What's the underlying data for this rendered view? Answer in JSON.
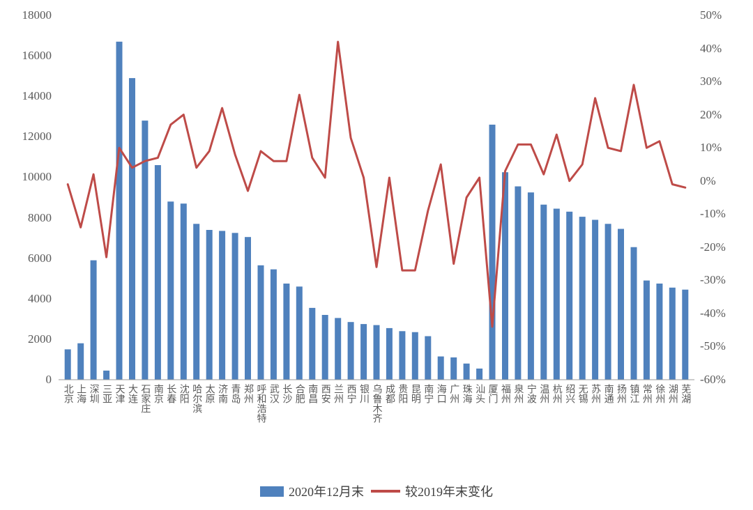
{
  "chart_data": {
    "type": "bar",
    "title": "",
    "categories": [
      "北京",
      "上海",
      "深圳",
      "三亚",
      "天津",
      "大连",
      "石家庄",
      "南京",
      "长春",
      "沈阳",
      "哈尔滨",
      "太原",
      "济南",
      "青岛",
      "郑州",
      "呼和浩特",
      "武汉",
      "长沙",
      "合肥",
      "南昌",
      "西安",
      "兰州",
      "西宁",
      "银川",
      "乌鲁木齐",
      "成都",
      "贵阳",
      "昆明",
      "南宁",
      "海口",
      "广州",
      "珠海",
      "汕头",
      "厦门",
      "福州",
      "泉州",
      "宁波",
      "温州",
      "杭州",
      "绍兴",
      "无锡",
      "苏州",
      "南通",
      "扬州",
      "镇江",
      "常州",
      "徐州",
      "湖州",
      "芜湖"
    ],
    "series": [
      {
        "name": "2020年12月末",
        "type": "bar",
        "axis": "left",
        "color": "#4F81BD",
        "values": [
          1500,
          1800,
          5900,
          450,
          16700,
          14900,
          12800,
          10600,
          8800,
          8700,
          7700,
          7400,
          7350,
          7250,
          7050,
          5650,
          5450,
          4750,
          4600,
          3550,
          3200,
          3050,
          2850,
          2750,
          2700,
          2550,
          2400,
          2350,
          2150,
          1150,
          1100,
          800,
          550,
          12600,
          10250,
          9550,
          9250,
          8650,
          8450,
          8300,
          8050,
          7900,
          7700,
          7450,
          6550,
          4900,
          4750,
          4550,
          4450
        ]
      },
      {
        "name": "较2019年末变化",
        "type": "line",
        "axis": "right",
        "color": "#BE4B48",
        "values_pct": [
          -1,
          -14,
          2,
          -23,
          10,
          4,
          6,
          7,
          17,
          20,
          4,
          9,
          22,
          8,
          -3,
          9,
          6,
          6,
          26,
          7,
          1,
          42,
          13,
          1,
          -26,
          1,
          -27,
          -27,
          -9,
          5,
          -25,
          -5,
          1,
          -44,
          3,
          11,
          11,
          2,
          14,
          0,
          5,
          25,
          10,
          9,
          29,
          10,
          12,
          -1,
          -2
        ]
      }
    ],
    "left_axis": {
      "min": 0,
      "max": 18000,
      "step": 2000,
      "tick_labels": [
        "18000",
        "16000",
        "14000",
        "12000",
        "10000",
        "8000",
        "6000",
        "4000",
        "2000",
        "0"
      ]
    },
    "right_axis": {
      "min": -60,
      "max": 50,
      "step": 10,
      "tick_labels": [
        "50%",
        "40%",
        "30%",
        "20%",
        "10%",
        "0%",
        "-10%",
        "-20%",
        "-30%",
        "-40%",
        "-50%",
        "-60%"
      ]
    },
    "legend": {
      "bar_label": "2020年12月末",
      "line_label": "较2019年末变化"
    },
    "grid": "off",
    "legend_position": "bottom-center"
  }
}
